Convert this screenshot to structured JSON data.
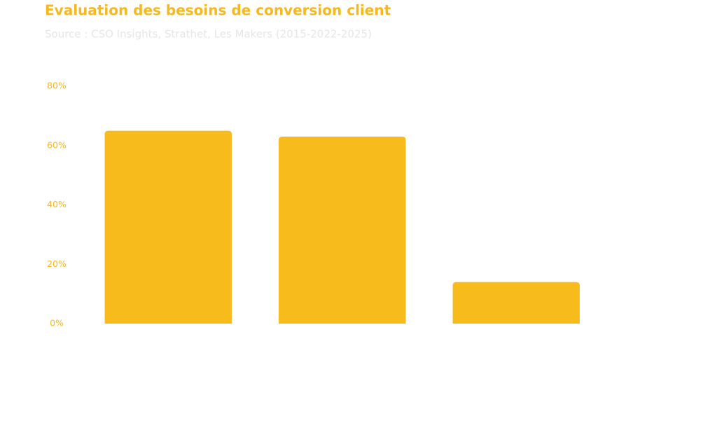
{
  "chart_data": {
    "type": "bar",
    "title": "Evaluation des besoins de conversion client",
    "subtitle": "Source : CSO Insights, Strathet, Les Makers (2015-2022-2025)",
    "categories": [
      null,
      null,
      null
    ],
    "values": [
      65,
      63,
      14
    ],
    "color": "#f7bb1c",
    "ylim": [
      0,
      80
    ],
    "yticks": [
      {
        "value": 0,
        "label": "0%"
      },
      {
        "value": 20,
        "label": "20%"
      },
      {
        "value": 40,
        "label": "40%"
      },
      {
        "value": 60,
        "label": "60%"
      },
      {
        "value": 80,
        "label": "80%"
      }
    ],
    "grid": false
  }
}
